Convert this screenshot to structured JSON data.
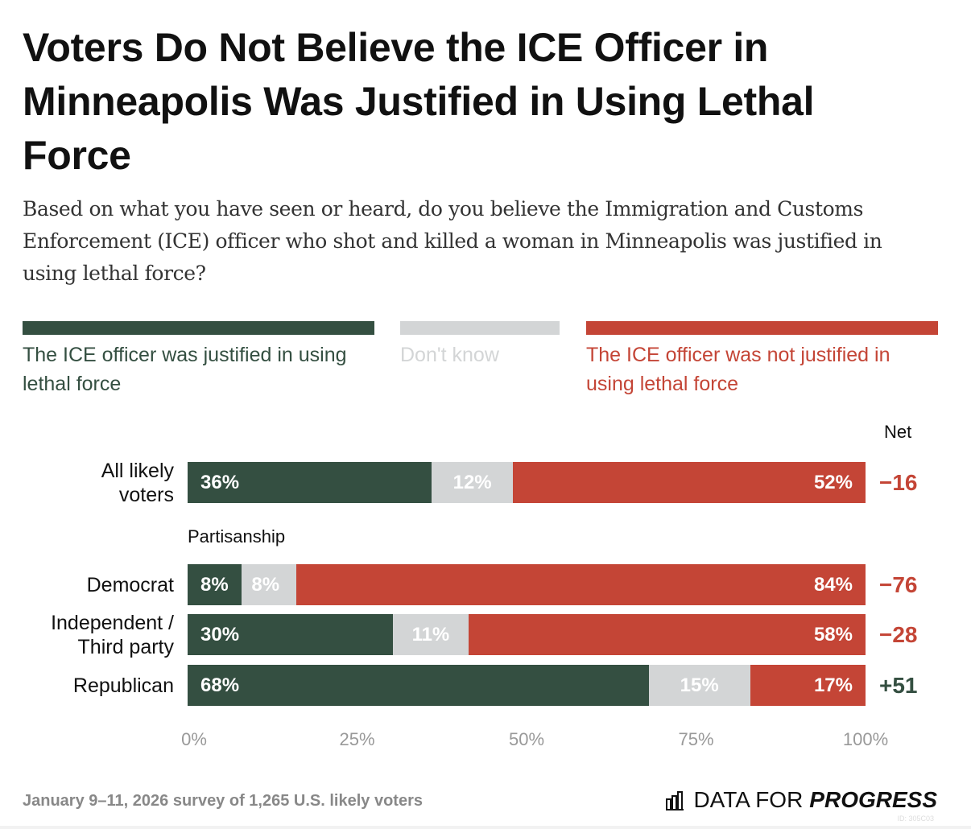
{
  "title": "Voters Do Not Believe the ICE Officer in Minneapolis Was Justified in Using Lethal Force",
  "subtitle": "Based on what you have seen or heard, do you believe the Immigration and Customs Enforcement (ICE) officer who shot and killed a woman in Minneapolis was justified in using lethal force?",
  "colors": {
    "justified": "#344f41",
    "dont_know": "#d3d5d6",
    "not_justified": "#c44536",
    "net_negative": "#c44536",
    "net_positive": "#344f41"
  },
  "legend": [
    {
      "label": "The ICE officer was justified in using lethal force",
      "color": "#344f41",
      "text_color": "#344f41"
    },
    {
      "label": "Don't know",
      "color": "#d3d5d6",
      "text_color": "#d3d5d6"
    },
    {
      "label": "The ICE officer was not justified in using lethal force",
      "color": "#c44536",
      "text_color": "#c44536"
    }
  ],
  "net_header": "Net",
  "group_label": "Partisanship",
  "footer": "January 9–11, 2026 survey of 1,265 U.S. likely voters",
  "logo": {
    "light": "DATA FOR",
    "bold": "PROGRESS",
    "id": "ID: 305C03"
  },
  "chart_data": {
    "type": "bar",
    "orientation": "horizontal",
    "stacked": true,
    "title": "Voters Do Not Believe the ICE Officer in Minneapolis Was Justified in Using Lethal Force",
    "xlabel": "",
    "ylabel": "",
    "xlim": [
      0,
      100
    ],
    "x_ticks": [
      "0%",
      "25%",
      "50%",
      "75%",
      "100%"
    ],
    "x_tick_values": [
      0,
      25,
      50,
      75,
      100
    ],
    "grid": false,
    "legend_position": "top",
    "categories": [
      "All likely voters",
      "Democrat",
      "Independent / Third party",
      "Republican"
    ],
    "category_display": [
      [
        "All likely",
        "voters"
      ],
      [
        "Democrat"
      ],
      [
        "Independent /",
        "Third party"
      ],
      [
        "Republican"
      ]
    ],
    "series": [
      {
        "name": "The ICE officer was justified in using lethal force",
        "values": [
          36,
          8,
          30,
          68
        ]
      },
      {
        "name": "Don't know",
        "values": [
          12,
          8,
          11,
          15
        ]
      },
      {
        "name": "The ICE officer was not justified in using lethal force",
        "values": [
          52,
          84,
          58,
          17
        ]
      }
    ],
    "net": [
      "−16",
      "−76",
      "−28",
      "+51"
    ],
    "net_values": [
      -16,
      -76,
      -28,
      51
    ]
  }
}
